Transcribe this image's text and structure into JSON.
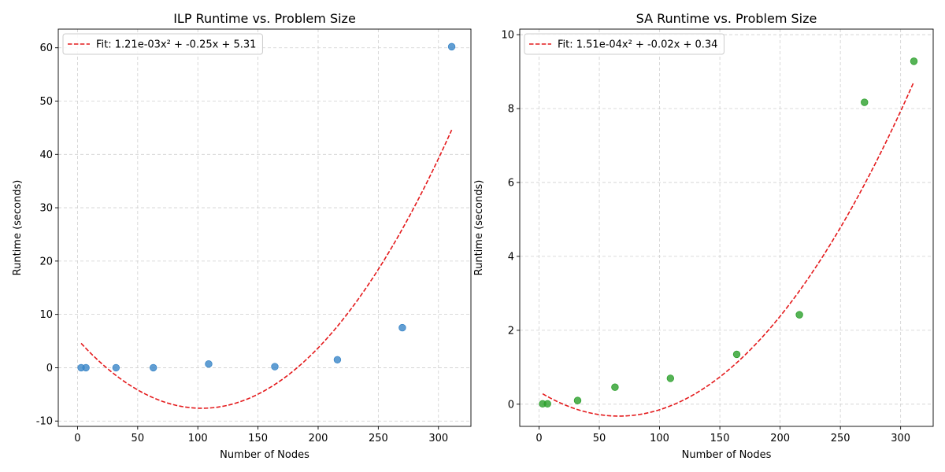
{
  "chart_data": [
    {
      "type": "scatter",
      "title": "ILP Runtime vs. Problem Size",
      "xlabel": "Number of Nodes",
      "ylabel": "Runtime (seconds)",
      "xlim": [
        -16,
        327
      ],
      "ylim": [
        -11,
        63.5
      ],
      "xticks": [
        0,
        50,
        100,
        150,
        200,
        250,
        300
      ],
      "yticks": [
        -10,
        0,
        10,
        20,
        30,
        40,
        50,
        60
      ],
      "grid": true,
      "legend_position": "top-left",
      "point_color": "#3a86c8",
      "points": {
        "x": [
          3,
          7,
          32,
          63,
          109,
          164,
          216,
          270,
          311
        ],
        "y": [
          0.0,
          0.0,
          0.0,
          0.0,
          0.7,
          0.2,
          1.5,
          7.5,
          60.2
        ]
      },
      "fit": {
        "label": "Fit: 1.21e-03x² + -0.25x + 5.31",
        "color": "#e41a1c",
        "coefficients": [
          0.00121,
          -0.25,
          5.31
        ],
        "x_range": [
          3,
          311
        ]
      }
    },
    {
      "type": "scatter",
      "title": "SA Runtime vs. Problem Size",
      "xlabel": "Number of Nodes",
      "ylabel": "Runtime (seconds)",
      "xlim": [
        -16,
        327
      ],
      "ylim": [
        -0.6,
        10.15
      ],
      "xticks": [
        0,
        50,
        100,
        150,
        200,
        250,
        300
      ],
      "yticks": [
        0,
        2,
        4,
        6,
        8,
        10
      ],
      "grid": true,
      "legend_position": "top-left",
      "point_color": "#2ca02c",
      "points": {
        "x": [
          3,
          7,
          32,
          63,
          109,
          164,
          216,
          270,
          311
        ],
        "y": [
          0.01,
          0.01,
          0.1,
          0.46,
          0.7,
          1.35,
          2.42,
          8.17,
          9.28
        ]
      },
      "fit": {
        "label": "Fit: 1.51e-04x² + -0.02x + 0.34",
        "color": "#e41a1c",
        "coefficients": [
          0.000151,
          -0.02,
          0.34
        ],
        "x_range": [
          3,
          311
        ]
      }
    }
  ]
}
